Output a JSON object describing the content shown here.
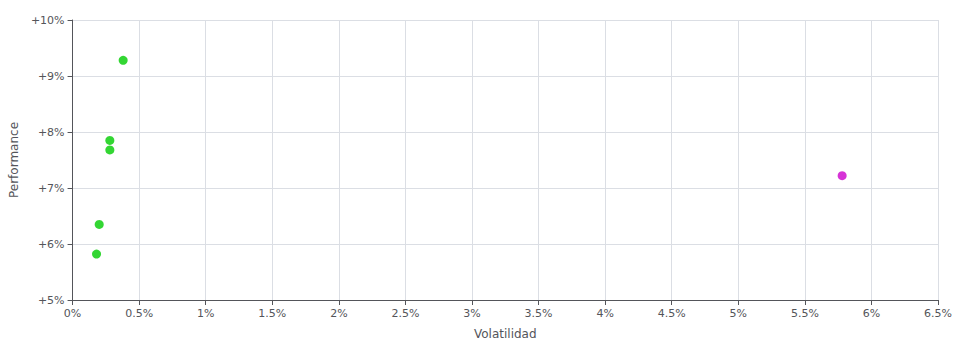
{
  "chart_data": {
    "type": "scatter",
    "x": [
      0.38,
      0.28,
      0.28,
      0.2,
      0.18,
      5.78
    ],
    "values": [
      9.28,
      7.85,
      7.68,
      6.35,
      5.82,
      7.22
    ],
    "colors": [
      "#00cc00",
      "#00cc00",
      "#00cc00",
      "#00cc00",
      "#00cc00",
      "#cc00cc"
    ],
    "xlim": [
      0.0,
      6.5
    ],
    "ylim": [
      5.0,
      10.0
    ],
    "xticks": [
      {
        "value": 0.0,
        "label": "0%"
      },
      {
        "value": 0.5,
        "label": "0.5%"
      },
      {
        "value": 1.0,
        "label": "1%"
      },
      {
        "value": 1.5,
        "label": "1.5%"
      },
      {
        "value": 2.0,
        "label": "2%"
      },
      {
        "value": 2.5,
        "label": "2.5%"
      },
      {
        "value": 3.0,
        "label": "3%"
      },
      {
        "value": 3.5,
        "label": "3.5%"
      },
      {
        "value": 4.0,
        "label": "4%"
      },
      {
        "value": 4.5,
        "label": "4.5%"
      },
      {
        "value": 5.0,
        "label": "5%"
      },
      {
        "value": 5.5,
        "label": "5.5%"
      },
      {
        "value": 6.0,
        "label": "6%"
      },
      {
        "value": 6.5,
        "label": "6.5%"
      }
    ],
    "yticks": [
      {
        "value": 5.0,
        "label": "+5%"
      },
      {
        "value": 6.0,
        "label": "+6%"
      },
      {
        "value": 7.0,
        "label": "+7%"
      },
      {
        "value": 8.0,
        "label": "+8%"
      },
      {
        "value": 9.0,
        "label": "+9%"
      },
      {
        "value": 10.0,
        "label": "+10%"
      }
    ],
    "xlabel": "Volatilidad",
    "ylabel": "Performance",
    "grid": true
  }
}
